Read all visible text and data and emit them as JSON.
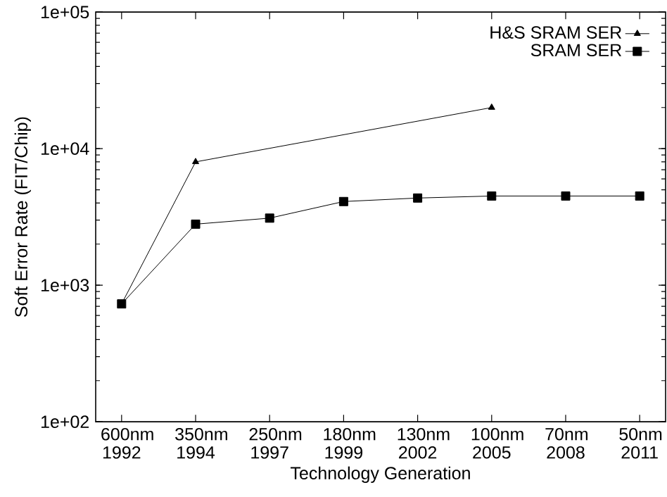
{
  "chart_data": {
    "type": "line",
    "xlabel": "Technology Generation",
    "ylabel": "Soft Error Rate (FIT/Chip)",
    "log": "y",
    "legend": "top right",
    "grid": false,
    "categories": [
      "600nm 1992",
      "350nm 1994",
      "250nm 1997",
      "180nm 1999",
      "130nm 2002",
      "100nm 2005",
      "70nm 2008",
      "50nm 2011"
    ],
    "ylim": [
      100,
      100000
    ],
    "yticks": [
      {
        "value": 100,
        "label": "1e+02"
      },
      {
        "value": 1000,
        "label": "1e+03"
      },
      {
        "value": 10000,
        "label": "1e+04"
      },
      {
        "value": 100000,
        "label": "1e+05"
      }
    ],
    "series": [
      {
        "name": "H&S SRAM SER",
        "color": "#000000",
        "marker": "triangle",
        "values": [
          730,
          8000,
          null,
          null,
          null,
          20000,
          null,
          null
        ]
      },
      {
        "name": "SRAM SER",
        "color": "#000000",
        "marker": "square",
        "values": [
          730,
          2800,
          3100,
          4100,
          4350,
          4500,
          4500,
          4500
        ]
      }
    ]
  }
}
